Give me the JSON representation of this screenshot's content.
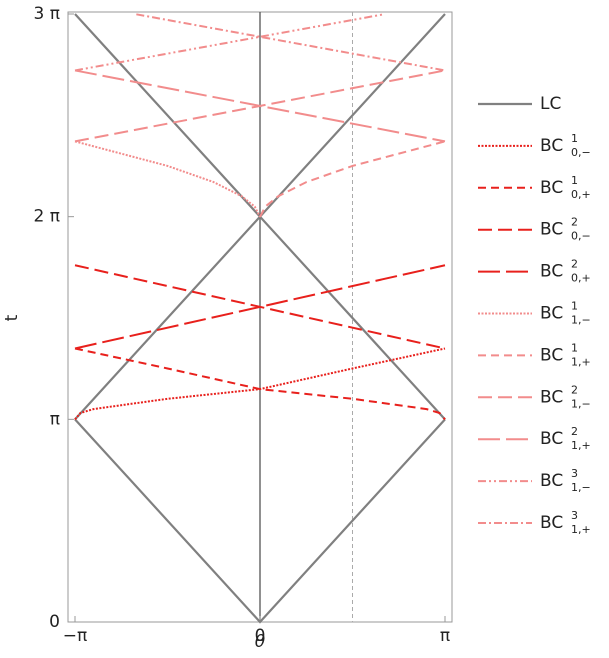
{
  "chart_data": {
    "type": "line",
    "x_label": "θ",
    "y_label": "t",
    "xlim": [
      -3.14159,
      3.14159
    ],
    "ylim": [
      0,
      9.42478
    ],
    "xticks": [
      {
        "value": -3.14159,
        "label": "−π"
      },
      0,
      {
        "value": 3.14159,
        "label": "π"
      }
    ],
    "yticks": [
      0,
      {
        "value": 3.14159,
        "label": "π"
      },
      {
        "value": 6.28319,
        "label": "2 π"
      },
      {
        "value": 9.42478,
        "label": "3 π"
      }
    ],
    "reference_x": 1.5708,
    "series": [
      {
        "name": "LC",
        "color": "#808080",
        "dash": "",
        "width": 2.2,
        "x": [
          -3.14159,
          0,
          3.14159,
          null,
          -3.14159,
          3.14159,
          null,
          3.14159,
          -3.14159
        ],
        "values": [
          3.14159,
          0,
          3.14159,
          null,
          3.14159,
          9.42478,
          null,
          3.14159,
          9.42478
        ]
      },
      {
        "name": "BC",
        "superscript": "1",
        "subscript": "0,−",
        "color": "#e8201c",
        "dash": "2,1.5",
        "width": 2,
        "x": [
          -3.14159,
          -3.05,
          -2.83,
          -2.36,
          -1.57,
          0,
          1.57,
          3.14159
        ],
        "values": [
          3.14,
          3.24,
          3.3,
          3.36,
          3.46,
          3.61,
          3.93,
          4.24
        ]
      },
      {
        "name": "BC",
        "superscript": "1",
        "subscript": "0,+",
        "color": "#e8201c",
        "dash": "8,5",
        "width": 2,
        "x": [
          -3.14159,
          -1.57,
          0,
          1.57,
          2.36,
          2.83,
          3.05,
          3.14159
        ],
        "values": [
          4.24,
          3.93,
          3.61,
          3.46,
          3.36,
          3.3,
          3.24,
          3.14
        ]
      },
      {
        "name": "BC",
        "superscript": "2",
        "subscript": "0,−",
        "color": "#e8201c",
        "dash": "14,6",
        "width": 2,
        "x": [
          -3.14159,
          3.14159
        ],
        "values": [
          5.53,
          4.24
        ]
      },
      {
        "name": "BC",
        "superscript": "2",
        "subscript": "0,+",
        "color": "#e8201c",
        "dash": "22,6",
        "width": 2,
        "x": [
          -3.14159,
          3.14159
        ],
        "values": [
          4.24,
          5.53
        ]
      },
      {
        "name": "BC",
        "superscript": "1",
        "subscript": "1,−",
        "color": "#f28c8c",
        "dash": "2,1.5",
        "width": 2,
        "x": [
          -3.14159,
          -1.57,
          -0.79,
          -0.31,
          -0.09,
          0
        ],
        "values": [
          7.45,
          7.07,
          6.82,
          6.6,
          6.44,
          6.28
        ]
      },
      {
        "name": "BC",
        "superscript": "1",
        "subscript": "1,+",
        "color": "#f28c8c",
        "dash": "8,5",
        "width": 2,
        "x": [
          0,
          0.09,
          0.31,
          0.79,
          1.57,
          3.14159
        ],
        "values": [
          6.28,
          6.44,
          6.6,
          6.82,
          7.07,
          7.45
        ]
      },
      {
        "name": "BC",
        "superscript": "2",
        "subscript": "1,−",
        "color": "#f28c8c",
        "dash": "14,6",
        "width": 2,
        "x": [
          -3.14159,
          3.14159
        ],
        "values": [
          7.45,
          8.55
        ]
      },
      {
        "name": "BC",
        "superscript": "2",
        "subscript": "1,+",
        "color": "#f28c8c",
        "dash": "22,6",
        "width": 2,
        "x": [
          -3.14159,
          3.14159
        ],
        "values": [
          8.55,
          7.45
        ]
      },
      {
        "name": "BC",
        "superscript": "3",
        "subscript": "1,−",
        "color": "#f28c8c",
        "dash": "8,3,2,3,2,3",
        "width": 2,
        "x": [
          -3.14159,
          2.1
        ],
        "values": [
          8.55,
          9.42
        ]
      },
      {
        "name": "BC",
        "superscript": "3",
        "subscript": "1,+",
        "color": "#f28c8c",
        "dash": "8,3,2,3",
        "width": 2,
        "x": [
          -2.1,
          3.14159
        ],
        "values": [
          9.42,
          8.55
        ]
      }
    ]
  }
}
